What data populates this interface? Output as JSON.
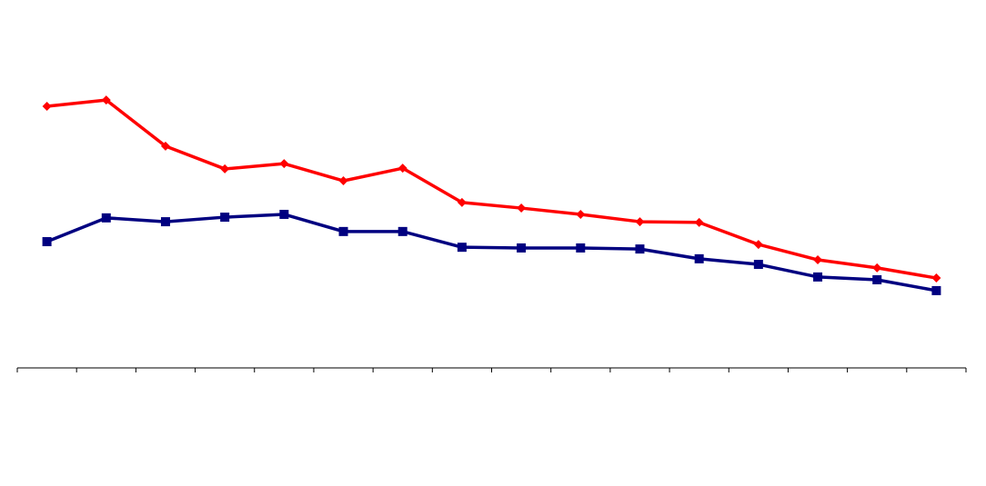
{
  "chart_data": {
    "type": "line",
    "categories": [
      null,
      null,
      null,
      null,
      null,
      null,
      null,
      null,
      null,
      null,
      null,
      null,
      null,
      null,
      null,
      null
    ],
    "series": [
      {
        "color": "#ff0000",
        "marker": "diamond",
        "values": [
          74.8,
          76.6,
          63.4,
          56.9,
          58.4,
          53.5,
          57.1,
          47.3,
          45.7,
          43.9,
          41.8,
          41.6,
          35.3,
          30.9,
          28.6,
          25.7
        ]
      },
      {
        "color": "#000080",
        "marker": "square",
        "values": [
          36.1,
          42.9,
          41.8,
          43.1,
          43.9,
          39.0,
          39.0,
          34.5,
          34.3,
          34.3,
          34.0,
          31.2,
          29.6,
          26.0,
          25.2,
          22.1
        ]
      }
    ],
    "ylim": [
      0,
      100
    ]
  }
}
